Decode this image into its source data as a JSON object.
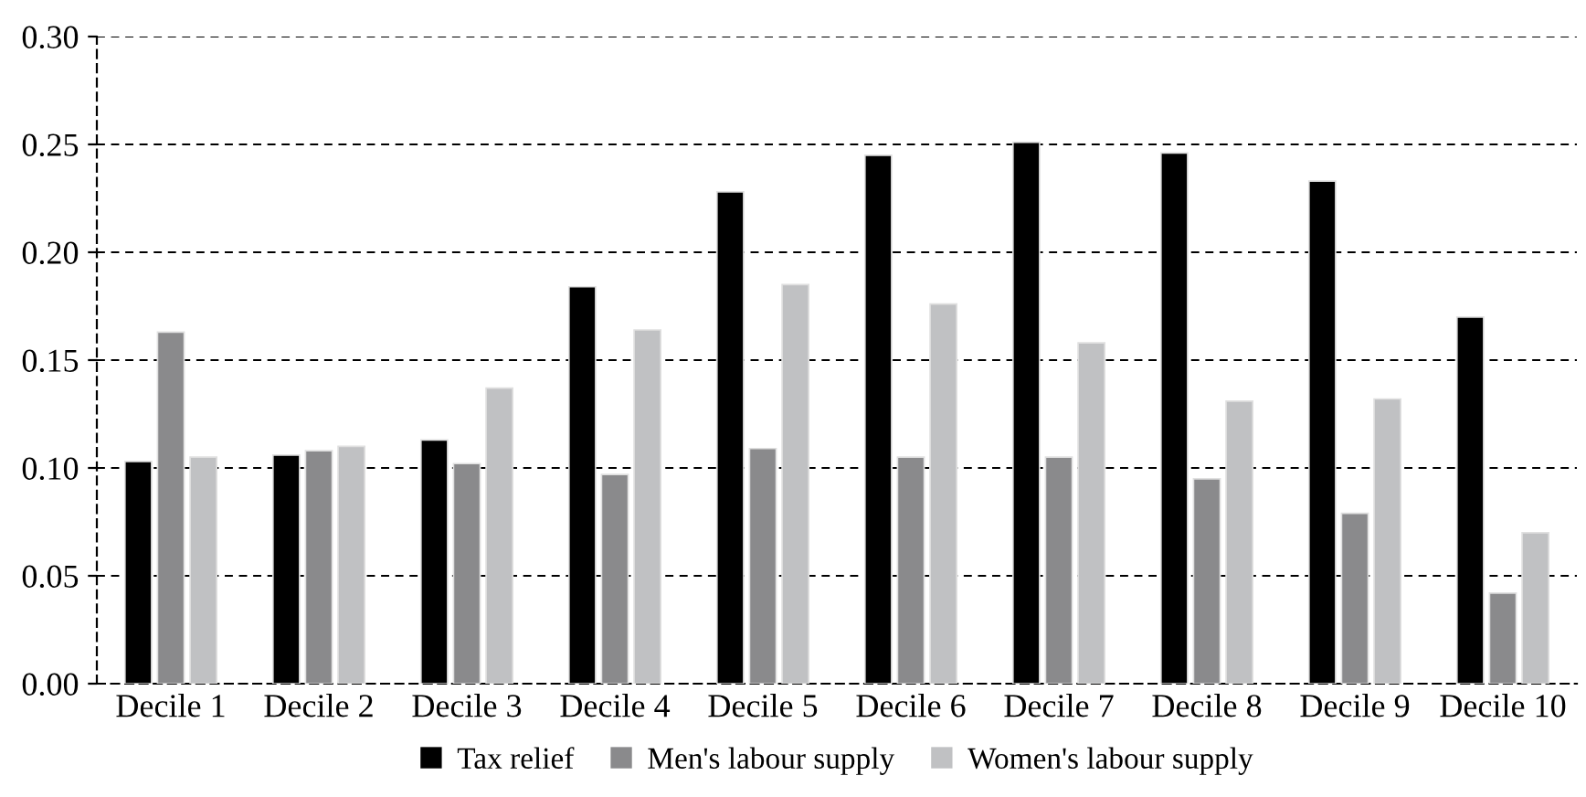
{
  "chart_data": {
    "type": "bar",
    "categories": [
      "Decile 1",
      "Decile 2",
      "Decile 3",
      "Decile 4",
      "Decile 5",
      "Decile 6",
      "Decile 7",
      "Decile 8",
      "Decile 9",
      "Decile 10"
    ],
    "series": [
      {
        "name": "Tax relief",
        "color": "#000000",
        "values": [
          0.103,
          0.106,
          0.113,
          0.184,
          0.228,
          0.245,
          0.251,
          0.246,
          0.233,
          0.17
        ]
      },
      {
        "name": "Men's labour supply",
        "color": "#8a8a8c",
        "values": [
          0.163,
          0.108,
          0.102,
          0.097,
          0.109,
          0.105,
          0.105,
          0.095,
          0.079,
          0.042
        ]
      },
      {
        "name": "Women's labour supply",
        "color": "#c0c1c3",
        "values": [
          0.105,
          0.11,
          0.137,
          0.164,
          0.185,
          0.176,
          0.158,
          0.131,
          0.132,
          0.07
        ]
      }
    ],
    "ylim": [
      0,
      0.3
    ],
    "yticks": [
      {
        "value": 0,
        "label": "0.00"
      },
      {
        "value": 0.05,
        "label": "0.05"
      },
      {
        "value": 0.1,
        "label": "0.10"
      },
      {
        "value": 0.15,
        "label": "0.15"
      },
      {
        "value": 0.2,
        "label": "0.20"
      },
      {
        "value": 0.25,
        "label": "0.25"
      },
      {
        "value": 0.3,
        "label": "0.30"
      }
    ],
    "grid": "y",
    "legend": "bottom"
  }
}
